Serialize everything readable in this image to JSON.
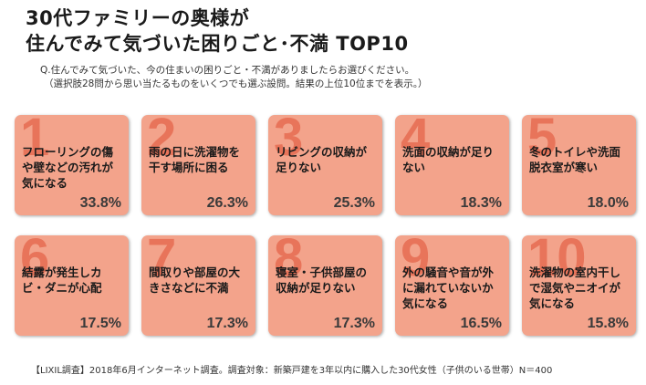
{
  "header": {
    "title_line1": "30代ファミリーの奥様が",
    "title_line2": "住んでみて気づいた困りごと･不満 TOP10"
  },
  "question": {
    "line1": "Q.住んでみて気づいた、今の住まいの困りごと・不満がありましたらお選びください。",
    "line2": "（選択肢28問から思い当たるものをいくつでも選ぶ設問。結果の上位10位までを表示。）"
  },
  "colors": {
    "card": "#f3a38b",
    "rank_number": "#e8745a"
  },
  "chart_data": {
    "type": "table",
    "title": "30代ファミリーの奥様が住んでみて気づいた困りごと･不満 TOP10",
    "items": [
      {
        "rank": "1",
        "label": "フローリングの傷や壁などの汚れが気になる",
        "value": 33.8,
        "display": "33.8%"
      },
      {
        "rank": "2",
        "label": "雨の日に洗濯物を干す場所に困る",
        "value": 26.3,
        "display": "26.3%"
      },
      {
        "rank": "3",
        "label": "リビングの収納が足りない",
        "value": 25.3,
        "display": "25.3%"
      },
      {
        "rank": "4",
        "label": "洗面の収納が足りない",
        "value": 18.3,
        "display": "18.3%"
      },
      {
        "rank": "5",
        "label": "冬のトイレや洗面脱衣室が寒い",
        "value": 18.0,
        "display": "18.0%"
      },
      {
        "rank": "6",
        "label": "結露が発生しカビ・ダニが心配",
        "value": 17.5,
        "display": "17.5%"
      },
      {
        "rank": "7",
        "label": "間取りや部屋の大きさなどに不満",
        "value": 17.3,
        "display": "17.3%"
      },
      {
        "rank": "8",
        "label": "寝室・子供部屋の収納が足りない",
        "value": 17.3,
        "display": "17.3%"
      },
      {
        "rank": "9",
        "label": "外の騒音や音が外に漏れていないか気になる",
        "value": 16.5,
        "display": "16.5%"
      },
      {
        "rank": "10",
        "label": "洗濯物の室内干しで湿気やニオイが気になる",
        "value": 15.8,
        "display": "15.8%"
      }
    ]
  },
  "footnote": "【LIXIL調査】2018年6月インターネット調査。調査対象：新築戸建を3年以内に購入した30代女性（子供のいる世帯）N＝400"
}
